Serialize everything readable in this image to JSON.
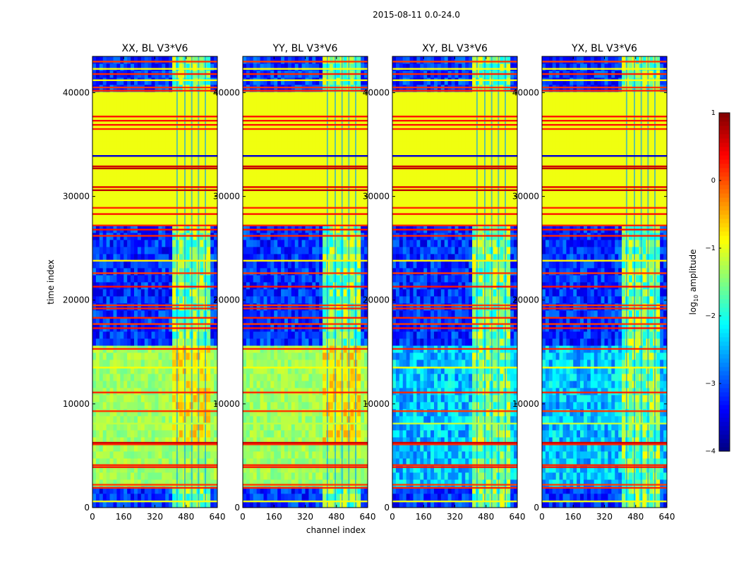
{
  "chart_data": {
    "type": "heatmap",
    "title": "2015-08-11 0.0-24.0",
    "xlabel": "channel index",
    "ylabel": "time index",
    "xlim": [
      0,
      640
    ],
    "ylim": [
      0,
      43500
    ],
    "xticks": [
      0,
      160,
      320,
      480,
      640
    ],
    "yticks": [
      0,
      10000,
      20000,
      30000,
      40000
    ],
    "panels": [
      {
        "title": "XX, BL V3*V6",
        "style": "parallel"
      },
      {
        "title": "YY, BL V3*V6",
        "style": "parallel"
      },
      {
        "title": "XY, BL V3*V6",
        "style": "cross"
      },
      {
        "title": "YX, BL V3*V6",
        "style": "cross"
      }
    ],
    "colorbar": {
      "label": "log",
      "label_sub": "10",
      "label_rest": " amplitude",
      "min": -4,
      "max": 1,
      "ticks": [
        -4,
        -3,
        -2,
        -1,
        0,
        1
      ],
      "tick_labels": [
        "−4",
        "−3",
        "−2",
        "−1",
        "0",
        "1"
      ],
      "colormap": "jet"
    },
    "flagged_time_range": [
      27300,
      40000
    ],
    "flagged_value": -0.95,
    "bright_channel_range": [
      410,
      600
    ]
  }
}
